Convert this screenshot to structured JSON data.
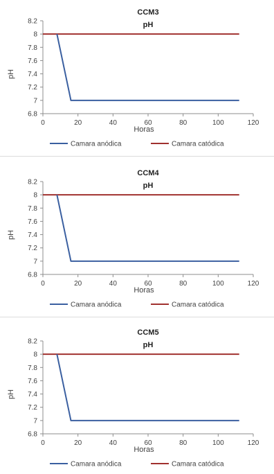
{
  "colors": {
    "anodic": "#3a5fa0",
    "cathodic": "#a0302e",
    "axis": "#8c8c8c"
  },
  "chart_data": [
    {
      "type": "line",
      "title": "CCM3",
      "subtitle": "pH",
      "xlabel": "Horas",
      "ylabel": "pH",
      "xlim": [
        0,
        120
      ],
      "ylim": [
        6.8,
        8.2
      ],
      "xticks": [
        0,
        20,
        40,
        60,
        80,
        100,
        120
      ],
      "yticks": [
        6.8,
        7,
        7.2,
        7.4,
        7.6,
        7.8,
        8,
        8.2
      ],
      "grid": false,
      "legend": "bottom",
      "series": [
        {
          "name": "Camara anódica",
          "x": [
            8,
            16,
            112
          ],
          "y": [
            8,
            7,
            7
          ]
        },
        {
          "name": "Camara catódica",
          "x": [
            0,
            112
          ],
          "y": [
            8,
            8
          ]
        }
      ]
    },
    {
      "type": "line",
      "title": "CCM4",
      "subtitle": "pH",
      "xlabel": "Horas",
      "ylabel": "pH",
      "xlim": [
        0,
        120
      ],
      "ylim": [
        6.8,
        8.2
      ],
      "xticks": [
        0,
        20,
        40,
        60,
        80,
        100,
        120
      ],
      "yticks": [
        6.8,
        7,
        7.2,
        7.4,
        7.6,
        7.8,
        8,
        8.2
      ],
      "grid": false,
      "legend": "bottom",
      "series": [
        {
          "name": "Camara anódica",
          "x": [
            8,
            16,
            112
          ],
          "y": [
            8,
            7,
            7
          ]
        },
        {
          "name": "Camara catódica",
          "x": [
            0,
            112
          ],
          "y": [
            8,
            8
          ]
        }
      ]
    },
    {
      "type": "line",
      "title": "CCM5",
      "subtitle": "pH",
      "xlabel": "Horas",
      "ylabel": "pH",
      "xlim": [
        0,
        120
      ],
      "ylim": [
        6.8,
        8.2
      ],
      "xticks": [
        0,
        20,
        40,
        60,
        80,
        100,
        120
      ],
      "yticks": [
        6.8,
        7,
        7.2,
        7.4,
        7.6,
        7.8,
        8,
        8.2
      ],
      "grid": false,
      "legend": "bottom",
      "series": [
        {
          "name": "Camara anódica",
          "x": [
            8,
            16,
            112
          ],
          "y": [
            8,
            7,
            7
          ]
        },
        {
          "name": "Camara catódica",
          "x": [
            0,
            112
          ],
          "y": [
            8,
            8
          ]
        }
      ]
    }
  ]
}
